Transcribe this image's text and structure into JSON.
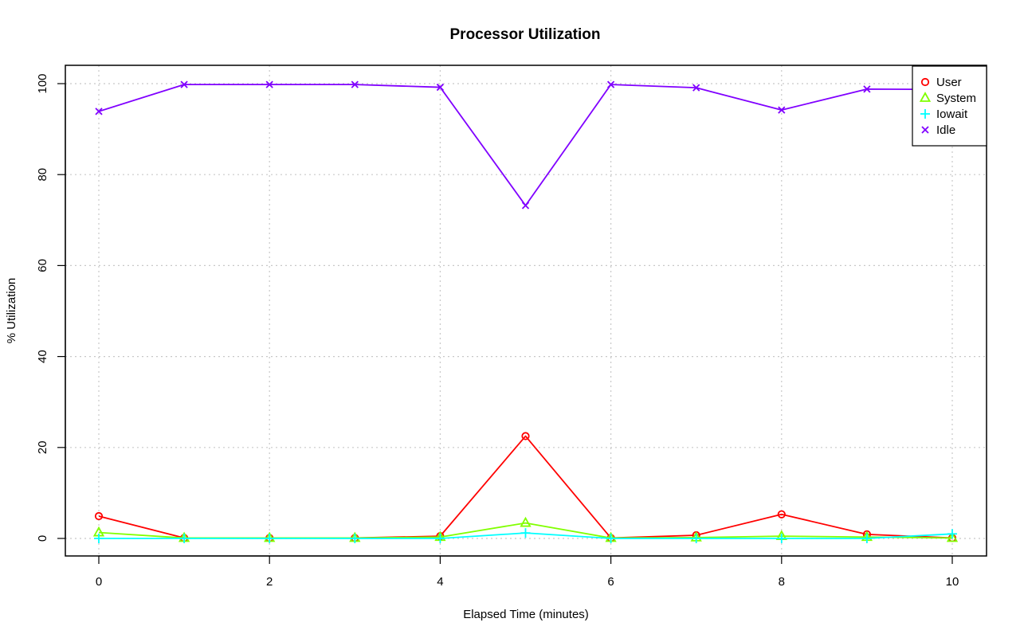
{
  "chart_data": {
    "type": "line",
    "title": "Processor Utilization",
    "xlabel": "Elapsed Time (minutes)",
    "ylabel": "% Utilization",
    "xlim": [
      0,
      10
    ],
    "ylim": [
      0,
      100
    ],
    "x_ticks": [
      0,
      2,
      4,
      6,
      8,
      10
    ],
    "y_ticks": [
      0,
      20,
      40,
      60,
      80,
      100
    ],
    "x_tick_labels": [
      "0",
      "2",
      "4",
      "6",
      "8",
      "10"
    ],
    "y_tick_labels": [
      "0",
      "20",
      "40",
      "60",
      "80",
      "100"
    ],
    "grid": true,
    "legend_position": "top-right",
    "x": [
      0,
      1,
      2,
      3,
      4,
      5,
      6,
      7,
      8,
      9,
      10
    ],
    "series": [
      {
        "name": "User",
        "marker": "circle",
        "color": "#ff0000",
        "values": [
          4.9,
          0.1,
          0.1,
          0.1,
          0.5,
          22.5,
          0.1,
          0.7,
          5.3,
          0.9,
          0.1
        ]
      },
      {
        "name": "System",
        "marker": "triangle",
        "color": "#80ff00",
        "values": [
          1.3,
          0.1,
          0.1,
          0.1,
          0.3,
          3.4,
          0.1,
          0.2,
          0.5,
          0.3,
          0.1
        ]
      },
      {
        "name": "Iowait",
        "marker": "plus",
        "color": "#00ffff",
        "values": [
          0.0,
          0.0,
          0.0,
          0.0,
          0.0,
          1.2,
          0.0,
          0.0,
          0.0,
          0.0,
          1.0
        ]
      },
      {
        "name": "Idle",
        "marker": "cross",
        "color": "#8000ff",
        "values": [
          93.9,
          99.8,
          99.8,
          99.8,
          99.2,
          73.2,
          99.8,
          99.1,
          94.2,
          98.8,
          98.7
        ]
      }
    ]
  }
}
